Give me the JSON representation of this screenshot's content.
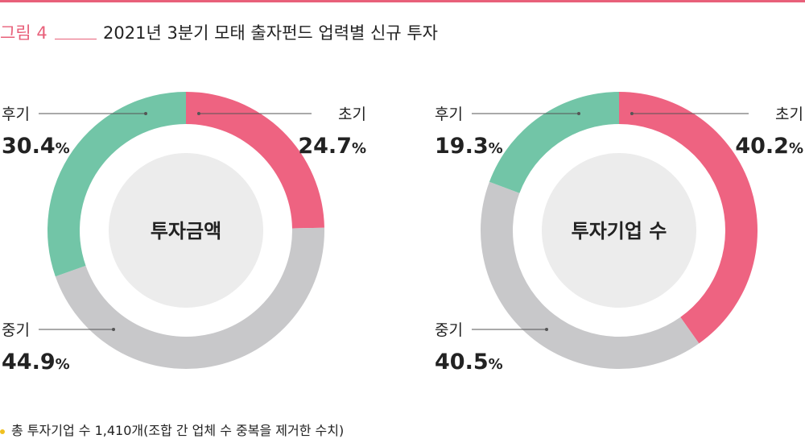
{
  "header": {
    "figure_label": "그림 4",
    "title": "2021년 3분기 모태 출자펀드 업력별 신규 투자"
  },
  "colors": {
    "early": "#ee6381",
    "middle": "#c8c8ca",
    "late": "#72c5a7",
    "center": "#ececec",
    "accent": "#e8607a"
  },
  "chart_data": [
    {
      "type": "pie",
      "center_label": "투자금액",
      "slices": [
        {
          "label": "초기",
          "value": 24.7,
          "value_text": "24.7"
        },
        {
          "label": "중기",
          "value": 44.9,
          "value_text": "44.9"
        },
        {
          "label": "후기",
          "value": 30.4,
          "value_text": "30.4"
        }
      ],
      "unit": "%"
    },
    {
      "type": "pie",
      "center_label": "투자기업 수",
      "slices": [
        {
          "label": "초기",
          "value": 40.2,
          "value_text": "40.2"
        },
        {
          "label": "중기",
          "value": 40.5,
          "value_text": "40.5"
        },
        {
          "label": "후기",
          "value": 19.3,
          "value_text": "19.3"
        }
      ],
      "unit": "%"
    }
  ],
  "footnote": "총 투자기업 수 1,410개(조합 간 업체 수 중복을 제거한 수치)"
}
